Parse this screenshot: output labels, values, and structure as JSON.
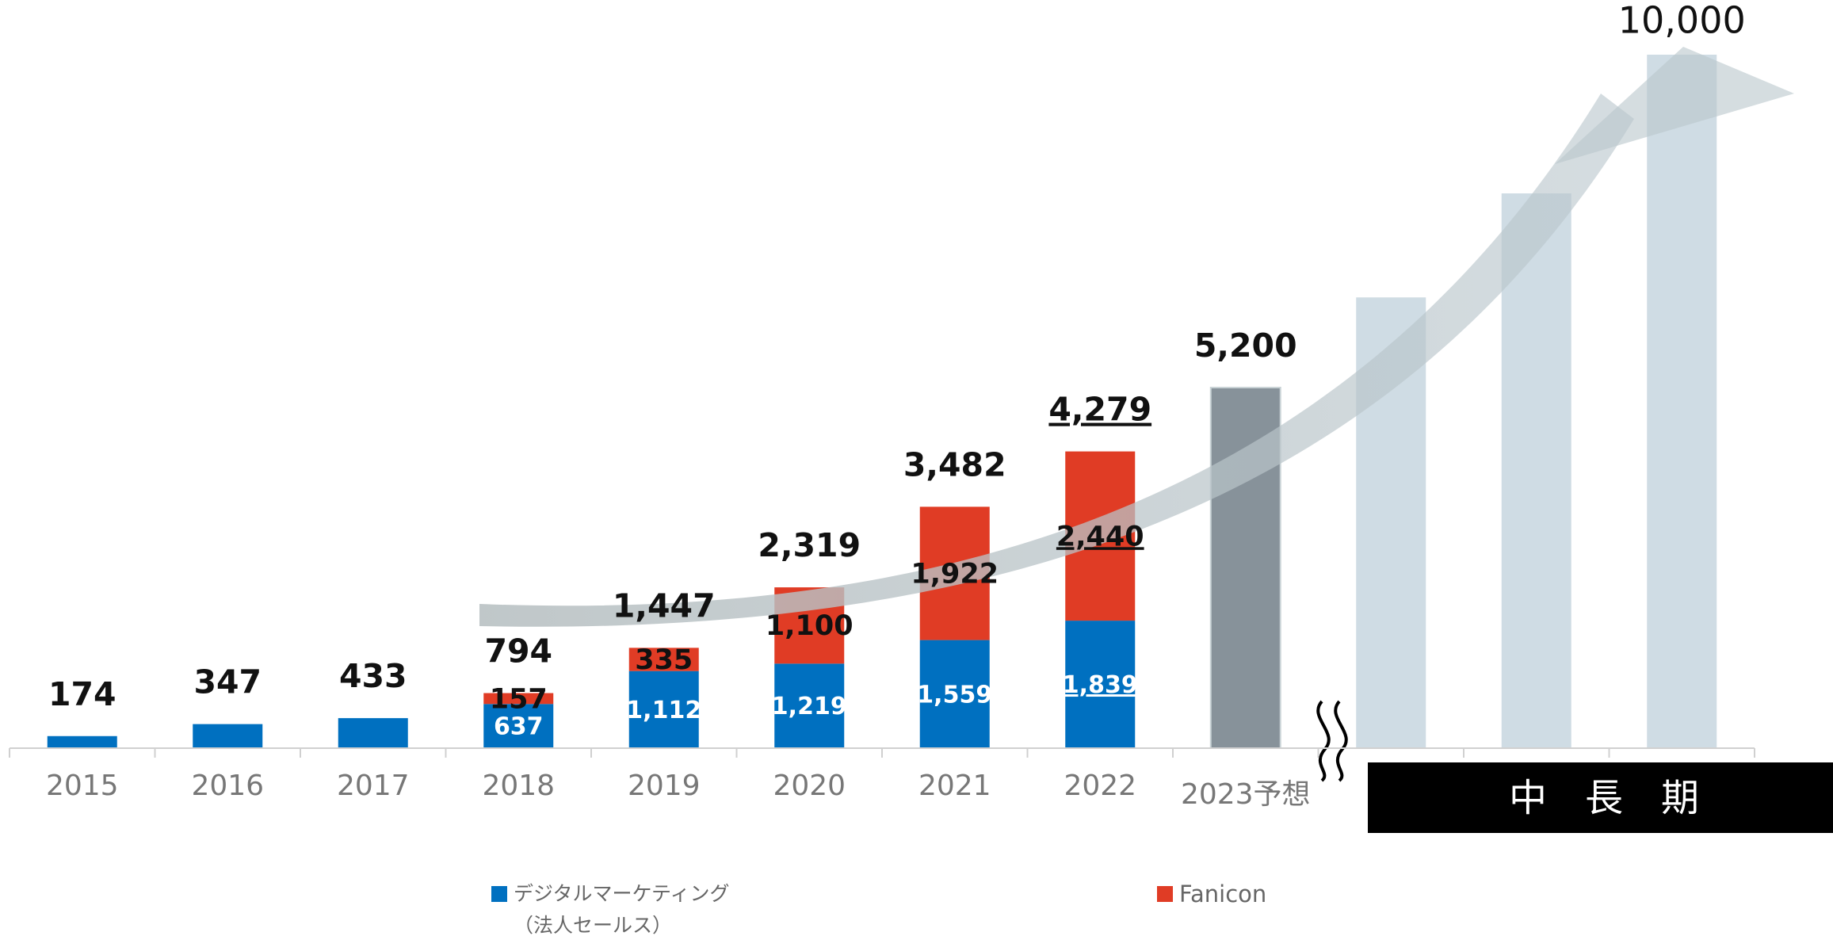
{
  "chart_data": {
    "type": "bar",
    "categories": [
      "2015",
      "2016",
      "2017",
      "2018",
      "2019",
      "2020",
      "2021",
      "2022",
      "2023予想",
      null,
      null,
      null
    ],
    "series": [
      {
        "name": "デジタルマーケティング\n（法人セールス）",
        "color": "#0070c0",
        "values": [
          174,
          347,
          433,
          637,
          1112,
          1219,
          1559,
          1839,
          null,
          null,
          null,
          null
        ],
        "value_labels": [
          null,
          null,
          null,
          "637",
          "1,112",
          "1,219",
          "1,559",
          "1,839",
          null,
          null,
          null,
          null
        ]
      },
      {
        "name": "Fanicon",
        "color": "#e03c25",
        "values": [
          null,
          null,
          null,
          157,
          335,
          1100,
          1922,
          2440,
          null,
          null,
          null,
          null
        ],
        "value_labels": [
          null,
          null,
          null,
          "157",
          "335",
          "1,100",
          "1,922",
          "2,440",
          null,
          null,
          null,
          null
        ]
      }
    ],
    "forecast": {
      "color": "#87929a",
      "values": [
        null,
        null,
        null,
        null,
        null,
        null,
        null,
        null,
        5200,
        null,
        null,
        null
      ]
    },
    "midterm": {
      "label": "中　長　期",
      "color": "#cfdce4",
      "values": [
        null,
        null,
        null,
        null,
        null,
        null,
        null,
        null,
        null,
        6500,
        8000,
        10000
      ]
    },
    "totals": {
      "values": [
        174,
        347,
        433,
        794,
        1447,
        2319,
        3482,
        4279,
        5200,
        null,
        null,
        10000
      ],
      "value_labels": [
        "174",
        "347",
        "433",
        "794",
        "1,447",
        "2,319",
        "3,482",
        "4,279",
        "5,200",
        null,
        null,
        "10,000"
      ]
    },
    "ylim": [
      0,
      10000
    ]
  }
}
